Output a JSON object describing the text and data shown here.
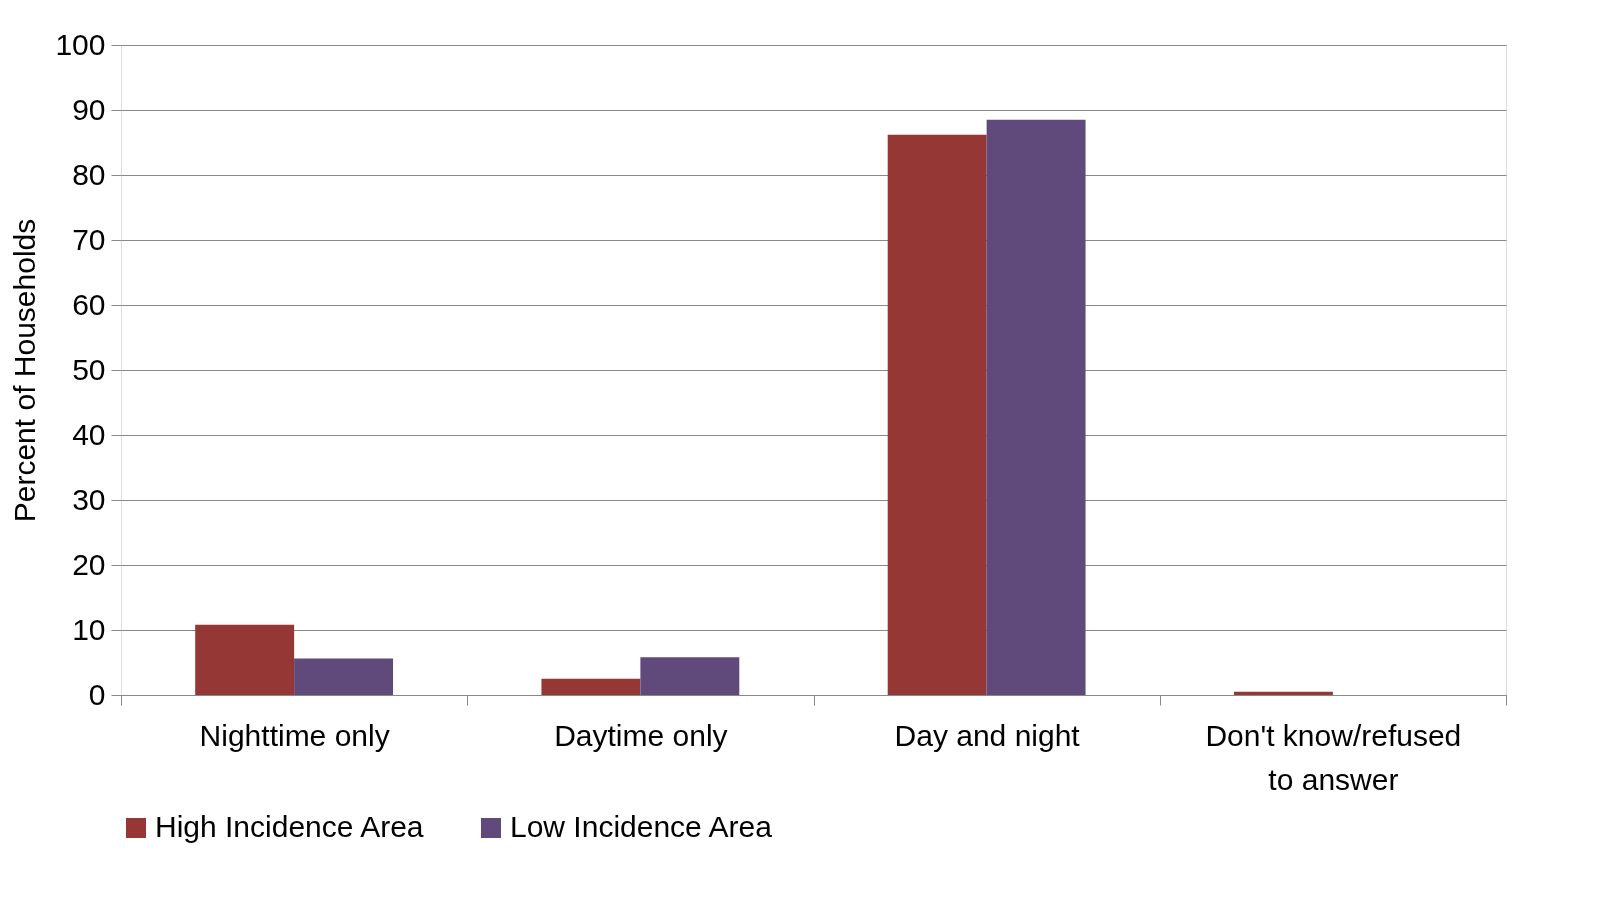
{
  "chart_data": {
    "type": "bar",
    "ylabel": "Percent of Households",
    "categories": [
      "Nighttime only",
      "Daytime only",
      "Day and night",
      "Don't know/refused to answer"
    ],
    "series": [
      {
        "name": "High Incidence Area",
        "color": "#953735",
        "values": [
          10.8,
          2.5,
          86.2,
          0.5
        ]
      },
      {
        "name": "Low Incidence Area",
        "color": "#604a7b",
        "values": [
          5.6,
          5.8,
          88.5,
          0
        ]
      }
    ],
    "ylim": [
      0,
      100
    ],
    "yticks": [
      0,
      10,
      20,
      30,
      40,
      50,
      60,
      70,
      80,
      90,
      100
    ],
    "grid": "y",
    "legend": "bottom"
  }
}
